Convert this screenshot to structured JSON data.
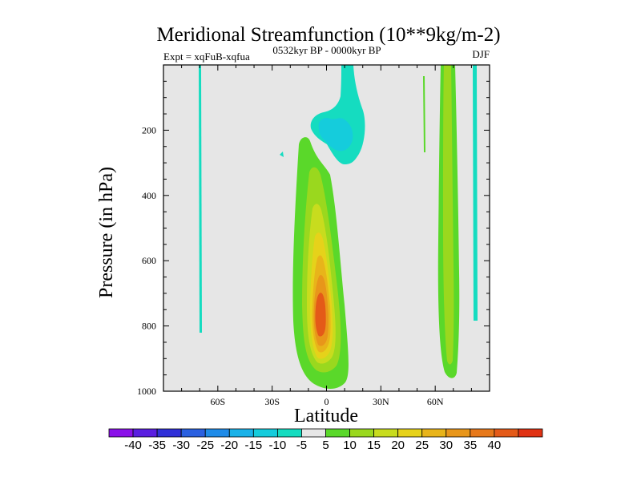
{
  "chart_data": {
    "type": "contour",
    "title": "Meridional Streamfunction (10**9kg/m-2)",
    "subtitle_left": "Expt = xqFuB-xqfua",
    "subtitle_center": "0532kyr BP - 0000kyr BP",
    "subtitle_right": "DJF",
    "xlabel": "Latitude",
    "ylabel": "Pressure (in hPa)",
    "xlim": [
      -90,
      90
    ],
    "ylim": [
      1000,
      0
    ],
    "x_ticks": [
      {
        "value": -60,
        "label": "60S"
      },
      {
        "value": -30,
        "label": "30S"
      },
      {
        "value": 0,
        "label": "0"
      },
      {
        "value": 30,
        "label": "30N"
      },
      {
        "value": 60,
        "label": "60N"
      }
    ],
    "y_ticks": [
      {
        "value": 200,
        "label": "200"
      },
      {
        "value": 400,
        "label": "400"
      },
      {
        "value": 600,
        "label": "600"
      },
      {
        "value": 800,
        "label": "800"
      },
      {
        "value": 1000,
        "label": "1000"
      }
    ],
    "background_color": "#e6e6e6",
    "colorbar": {
      "colors": [
        "#8a10e8",
        "#5a1ee0",
        "#3030d8",
        "#2a60e0",
        "#1e8be8",
        "#1ab2e8",
        "#15ccdc",
        "#15dcc0",
        "#e6e6e6",
        "#5ad82a",
        "#9ad81e",
        "#c8dc1e",
        "#e6d21a",
        "#e8b41a",
        "#e8961a",
        "#e6781a",
        "#e45a18",
        "#e03214"
      ],
      "labels": [
        "-40",
        "-35",
        "-30",
        "-25",
        "-20",
        "-15",
        "-10",
        "-5",
        "5",
        "10",
        "15",
        "20",
        "25",
        "30",
        "35",
        "40"
      ]
    },
    "features": [
      {
        "name": "southern-tropical-cell",
        "levels": [
          5,
          10,
          15,
          20,
          25,
          30,
          35
        ],
        "peak_lat": -3,
        "peak_pressure": 770,
        "peak_value": 35
      },
      {
        "name": "upper-negative-cell",
        "levels": [
          -5,
          -10
        ],
        "center_lat": 5,
        "center_pressure": 180
      },
      {
        "name": "nh-highlat-positive-band",
        "levels": [
          5,
          10
        ],
        "lat": 62
      },
      {
        "name": "sh-negative-streak",
        "levels": [
          -5
        ],
        "lat": -70
      },
      {
        "name": "nh-negative-streak",
        "levels": [
          -5
        ],
        "lat": 80
      }
    ]
  }
}
